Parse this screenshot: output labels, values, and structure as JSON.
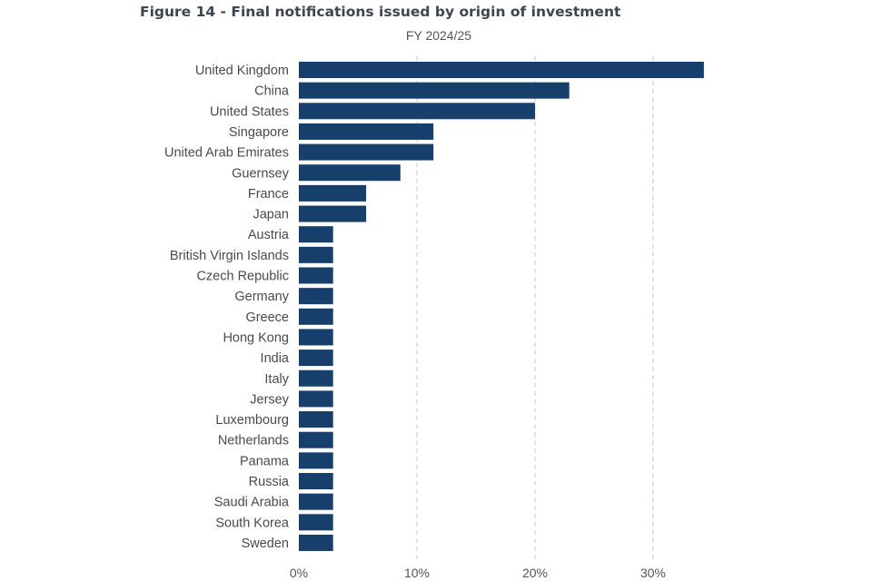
{
  "figure_title": "Figure 14 - Final notifications issued by origin of investment",
  "chart_data": {
    "type": "bar",
    "orientation": "horizontal",
    "title": "Figure 14 - Final notifications issued by origin of investment",
    "subtitle": "FY 2024/25",
    "xlabel": "",
    "ylabel": "",
    "xlim": [
      0,
      35
    ],
    "x_ticks": [
      0,
      10,
      20,
      30
    ],
    "x_tick_labels": [
      "0%",
      "10%",
      "20%",
      "30%"
    ],
    "grid": "vertical dashed",
    "bar_color": "#173f6b",
    "categories": [
      "United Kingdom",
      "China",
      "United States",
      "Singapore",
      "United Arab Emirates",
      "Guernsey",
      "France",
      "Japan",
      "Austria",
      "British Virgin Islands",
      "Czech Republic",
      "Germany",
      "Greece",
      "Hong Kong",
      "India",
      "Italy",
      "Jersey",
      "Luxembourg",
      "Netherlands",
      "Panama",
      "Russia",
      "Saudi Arabia",
      "South Korea",
      "Sweden"
    ],
    "values": [
      34.3,
      22.9,
      20.0,
      11.4,
      11.4,
      8.6,
      5.7,
      5.7,
      2.9,
      2.9,
      2.9,
      2.9,
      2.9,
      2.9,
      2.9,
      2.9,
      2.9,
      2.9,
      2.9,
      2.9,
      2.9,
      2.9,
      2.9,
      2.9
    ]
  }
}
